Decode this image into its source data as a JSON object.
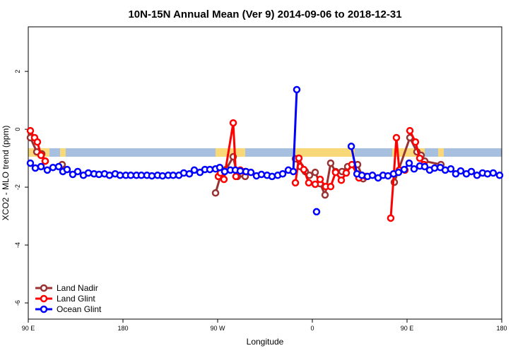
{
  "chart_data": {
    "type": "line",
    "title": "10N-15N Annual Mean (Ver 9)   2014-09-06 to 2018-12-31",
    "x_label": "Longitude",
    "y_label": "XCO2 - MLO trend (ppm)",
    "xlim": [
      90,
      540
    ],
    "ylim": [
      -6.56,
      3.54
    ],
    "xticks": [
      {
        "value": 90,
        "label": "90 E"
      },
      {
        "value": 180,
        "label": "180"
      },
      {
        "value": 270,
        "label": "90 W"
      },
      {
        "value": 360,
        "label": "0"
      },
      {
        "value": 450,
        "label": "90 E"
      },
      {
        "value": 540,
        "label": "180"
      }
    ],
    "yticks": [
      -6,
      -4,
      -2,
      0,
      2
    ],
    "legend": "bottom-left",
    "series": [
      {
        "name": "Land Nadir",
        "color": "#993333",
        "x": [
          92.0,
          98.1,
          102.8,
          106.1,
          null,
          122.2,
          null,
          268.0,
          273.3,
          278.0,
          284.8,
          288.8,
          296.2,
          null,
          343.9,
          348.6,
          353.3,
          357.3,
          362.7,
          367.4,
          372.1,
          377.4,
          382.1,
          388.2,
          393.6,
          403.0,
          408.3,
          null,
          437.9,
          452.7,
          459.4,
          463.4,
          466.8,
          482.2
        ],
        "values": [
          -0.29,
          -0.78,
          -0.85,
          -1.1,
          null,
          -1.22,
          null,
          -2.2,
          -1.54,
          -1.39,
          -0.95,
          -1.63,
          -1.63,
          null,
          -1.02,
          -1.29,
          -1.46,
          -1.59,
          -1.49,
          -1.88,
          -2.27,
          -1.17,
          -1.46,
          -1.46,
          -1.29,
          -1.22,
          -1.71,
          null,
          -1.83,
          -0.29,
          -0.78,
          -0.9,
          -1.1,
          -1.22
        ]
      },
      {
        "name": "Land Glint",
        "color": "#ff0000",
        "x": [
          92.0,
          96.0,
          98.7,
          102.1,
          106.1,
          null,
          270.7,
          272.7,
          276.0,
          284.8,
          287.4,
          291.5,
          296.2,
          null,
          343.9,
          347.2,
          351.9,
          356.6,
          362.7,
          367.4,
          372.7,
          377.4,
          382.1,
          387.5,
          392.2,
          397.6,
          404.3,
          411.0,
          null,
          434.5,
          439.9,
          442.6,
          448.0,
          null,
          452.7,
          458.0,
          462.1,
          466.1
        ],
        "values": [
          -0.05,
          -0.29,
          -0.44,
          -0.9,
          -1.1,
          null,
          -1.63,
          -1.51,
          -1.73,
          0.22,
          -1.63,
          -1.41,
          -1.46,
          null,
          -1.85,
          -1.0,
          -1.39,
          -1.85,
          -1.9,
          -1.73,
          -1.98,
          -1.98,
          -1.49,
          -1.76,
          -1.51,
          -1.22,
          -1.68,
          -1.63,
          null,
          -3.07,
          -0.29,
          -1.41,
          -1.41,
          null,
          -0.05,
          -0.44,
          -1.0,
          -1.22
        ]
      },
      {
        "name": "Ocean Glint",
        "color": "#0000ff",
        "x": [
          92.0,
          96.7,
          102.1,
          108.1,
          113.5,
          118.9,
          122.9,
          126.9,
          132.3,
          137.0,
          142.4,
          147.1,
          152.5,
          157.2,
          162.5,
          167.2,
          172.6,
          177.3,
          182.7,
          187.4,
          192.8,
          197.5,
          202.8,
          207.5,
          212.9,
          217.6,
          223.0,
          227.7,
          233.1,
          237.8,
          243.1,
          247.8,
          253.2,
          257.9,
          262.6,
          268.0,
          272.0,
          276.7,
          282.1,
          286.8,
          291.5,
          296.9,
          301.6,
          306.9,
          311.6,
          317.0,
          321.7,
          327.1,
          331.8,
          337.2,
          341.9,
          345.2,
          null,
          364.0,
          null,
          397.0,
          402.4,
          407.1,
          412.4,
          417.1,
          422.5,
          427.2,
          431.9,
          437.2,
          441.9,
          447.3,
          452.0,
          456.7,
          462.1,
          466.8,
          471.5,
          476.2,
          481.6,
          486.3,
          491.6,
          496.3,
          501.0,
          506.4,
          511.1,
          516.5,
          521.8,
          526.5,
          531.9,
          538.0
        ],
        "values": [
          -1.17,
          -1.34,
          -1.29,
          -1.41,
          -1.32,
          -1.29,
          -1.46,
          -1.39,
          -1.56,
          -1.46,
          -1.59,
          -1.51,
          -1.54,
          -1.56,
          -1.54,
          -1.59,
          -1.54,
          -1.59,
          -1.59,
          -1.59,
          -1.59,
          -1.59,
          -1.59,
          -1.61,
          -1.59,
          -1.61,
          -1.59,
          -1.59,
          -1.59,
          -1.51,
          -1.54,
          -1.41,
          -1.49,
          -1.39,
          -1.39,
          -1.37,
          -1.32,
          -1.46,
          -1.41,
          -1.41,
          -1.44,
          -1.46,
          -1.49,
          -1.61,
          -1.56,
          -1.59,
          -1.63,
          -1.59,
          -1.54,
          -1.41,
          -1.46,
          1.37,
          null,
          -2.85,
          null,
          -0.59,
          -1.54,
          -1.59,
          -1.63,
          -1.59,
          -1.68,
          -1.59,
          -1.61,
          -1.54,
          -1.49,
          -1.39,
          -1.17,
          -1.37,
          -1.27,
          -1.29,
          -1.41,
          -1.34,
          -1.32,
          -1.41,
          -1.37,
          -1.54,
          -1.44,
          -1.54,
          -1.46,
          -1.59,
          -1.51,
          -1.54,
          -1.51,
          -1.59
        ]
      }
    ]
  }
}
